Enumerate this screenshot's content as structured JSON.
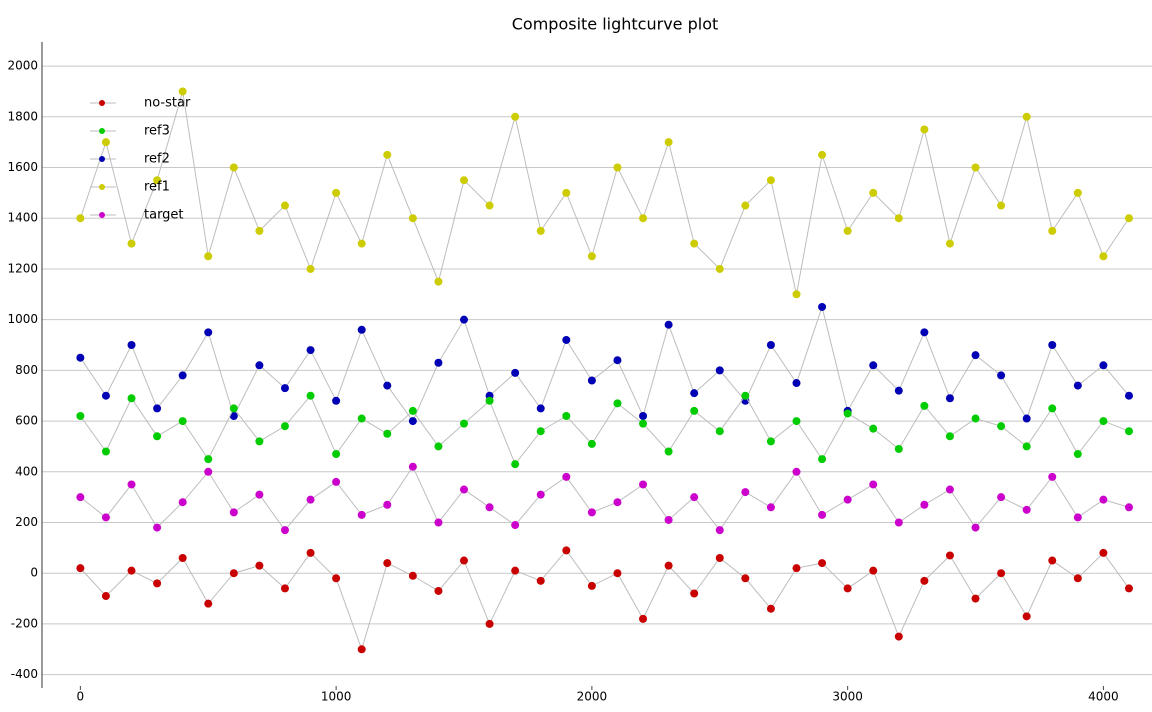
{
  "chart_data": {
    "type": "line",
    "title": "Composite lightcurve plot",
    "x": [
      0,
      100,
      200,
      300,
      400,
      500,
      600,
      700,
      800,
      900,
      1000,
      1100,
      1200,
      1300,
      1400,
      1500,
      1600,
      1700,
      1800,
      1900,
      2000,
      2100,
      2200,
      2300,
      2400,
      2500,
      2600,
      2700,
      2800,
      2900,
      3000,
      3100,
      3200,
      3300,
      3400,
      3500,
      3600,
      3700,
      3800,
      3900,
      4000,
      4100
    ],
    "series": [
      {
        "name": "no-star",
        "color": "#c80000",
        "values": [
          20,
          -90,
          10,
          -40,
          60,
          -120,
          0,
          30,
          -60,
          80,
          -20,
          -300,
          40,
          -10,
          -70,
          50,
          -200,
          10,
          -30,
          90,
          -50,
          0,
          -180,
          30,
          -80,
          60,
          -20,
          -140,
          20,
          40,
          -60,
          10,
          -250,
          -30,
          70,
          -100,
          0,
          -170,
          50,
          -20,
          80,
          -60
        ]
      },
      {
        "name": "ref3",
        "color": "#00cc00",
        "values": [
          620,
          480,
          690,
          540,
          600,
          450,
          650,
          520,
          580,
          700,
          470,
          610,
          550,
          640,
          500,
          590,
          680,
          430,
          560,
          620,
          510,
          670,
          590,
          480,
          640,
          560,
          700,
          520,
          600,
          450,
          630,
          570,
          490,
          660,
          540,
          610,
          580,
          500,
          650,
          470,
          600,
          560
        ]
      },
      {
        "name": "ref2",
        "color": "#0000b4",
        "values": [
          850,
          700,
          900,
          650,
          780,
          950,
          620,
          820,
          730,
          880,
          680,
          960,
          740,
          600,
          830,
          1000,
          700,
          790,
          650,
          920,
          760,
          840,
          620,
          980,
          710,
          800,
          680,
          900,
          750,
          1050,
          640,
          820,
          720,
          950,
          690,
          860,
          780,
          610,
          900,
          740,
          820,
          700
        ]
      },
      {
        "name": "ref1",
        "color": "#cccc00",
        "values": [
          1400,
          1700,
          1300,
          1550,
          1900,
          1250,
          1600,
          1350,
          1450,
          1200,
          1500,
          1300,
          1650,
          1400,
          1150,
          1550,
          1450,
          1800,
          1350,
          1500,
          1250,
          1600,
          1400,
          1700,
          1300,
          1200,
          1450,
          1550,
          1100,
          1650,
          1350,
          1500,
          1400,
          1750,
          1300,
          1600,
          1450,
          1800,
          1350,
          1500,
          1250,
          1400
        ]
      },
      {
        "name": "target",
        "color": "#cc00cc",
        "values": [
          300,
          220,
          350,
          180,
          280,
          400,
          240,
          310,
          170,
          290,
          360,
          230,
          270,
          420,
          200,
          330,
          260,
          190,
          310,
          380,
          240,
          280,
          350,
          210,
          300,
          170,
          320,
          260,
          400,
          230,
          290,
          350,
          200,
          270,
          330,
          180,
          300,
          250,
          380,
          220,
          290,
          260
        ]
      }
    ],
    "xlim": [
      -150,
      4190
    ],
    "xticks": [
      0,
      1000,
      2000,
      3000,
      4000
    ],
    "ylim": [
      -500,
      2095
    ],
    "yticks": [
      -400,
      -200,
      0,
      200,
      400,
      600,
      800,
      1000,
      1200,
      1400,
      1600,
      1800,
      2000
    ],
    "grid": true,
    "legend": "upper left"
  }
}
